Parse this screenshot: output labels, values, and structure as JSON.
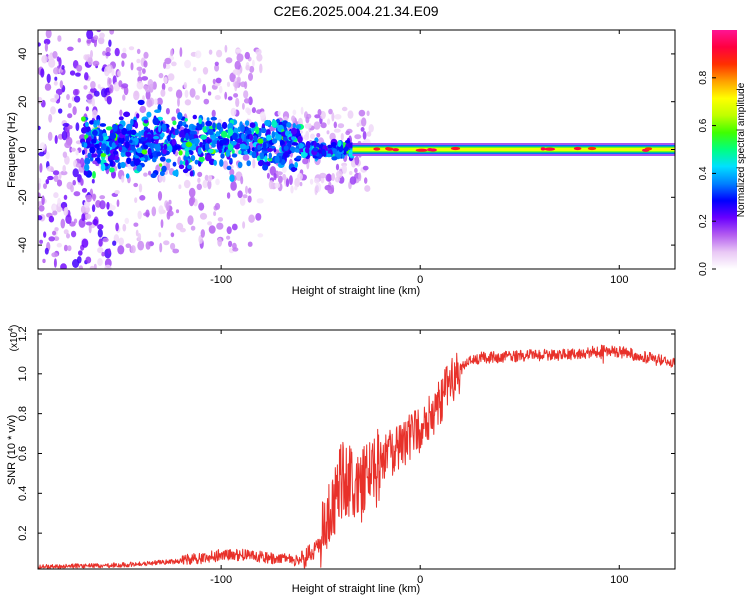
{
  "title": "C2E6.2025.004.21.34.E09",
  "chart_data": [
    {
      "type": "heatmap",
      "xlabel": "Height of straight line (km)",
      "ylabel": "Frequency (Hz)",
      "xlim": [
        -192,
        128
      ],
      "ylim": [
        -50,
        50
      ],
      "xticks": [
        -100,
        0,
        100
      ],
      "yticks": [
        -40,
        -20,
        0,
        20,
        40
      ],
      "colorbar": {
        "label": "Normalized spectral amplitude",
        "range": [
          0,
          1
        ],
        "ticks": [
          0.0,
          0.2,
          0.4,
          0.6,
          0.8
        ],
        "colormap": [
          "#ffffff",
          "#e9c8f5",
          "#b35cf0",
          "#6a00ff",
          "#0000ff",
          "#0080ff",
          "#00e0ff",
          "#00ff80",
          "#40ff00",
          "#c0ff00",
          "#ffff00",
          "#ffa000",
          "#ff3000",
          "#ff0040",
          "#ff1493"
        ]
      },
      "features": {
        "carrier_line": {
          "x_from": -34,
          "x_to": 128,
          "frequency": 0,
          "amplitude": 0.7
        },
        "scatter_region": {
          "x_from": -192,
          "x_to": -34,
          "frequency_spread": 50,
          "core_spread": 8
        }
      }
    },
    {
      "type": "line",
      "xlabel": "Height of straight line (km)",
      "ylabel": "SNR (10 * v/v)",
      "y_multiplier": "(x10",
      "y_multiplier_exp": "4",
      "y_multiplier_close": ")",
      "xlim": [
        -192,
        128
      ],
      "ylim": [
        0.02,
        1.22
      ],
      "xticks": [
        -100,
        0,
        100
      ],
      "yticks": [
        0.2,
        0.4,
        0.6,
        0.8,
        1.0,
        1.2
      ],
      "series": [
        {
          "color": "#e8312a",
          "points": [
            [
              -192,
              0.03
            ],
            [
              -150,
              0.04
            ],
            [
              -120,
              0.06
            ],
            [
              -100,
              0.09
            ],
            [
              -85,
              0.09
            ],
            [
              -70,
              0.07
            ],
            [
              -60,
              0.06
            ],
            [
              -52,
              0.12
            ],
            [
              -45,
              0.3
            ],
            [
              -40,
              0.45
            ],
            [
              -35,
              0.48
            ],
            [
              -30,
              0.42
            ],
            [
              -25,
              0.48
            ],
            [
              -20,
              0.55
            ],
            [
              -15,
              0.6
            ],
            [
              -10,
              0.64
            ],
            [
              -5,
              0.68
            ],
            [
              0,
              0.72
            ],
            [
              5,
              0.78
            ],
            [
              10,
              0.86
            ],
            [
              15,
              0.95
            ],
            [
              20,
              1.02
            ],
            [
              25,
              1.06
            ],
            [
              30,
              1.08
            ],
            [
              50,
              1.09
            ],
            [
              80,
              1.1
            ],
            [
              95,
              1.12
            ],
            [
              105,
              1.1
            ],
            [
              115,
              1.08
            ],
            [
              128,
              1.05
            ]
          ]
        }
      ]
    }
  ]
}
